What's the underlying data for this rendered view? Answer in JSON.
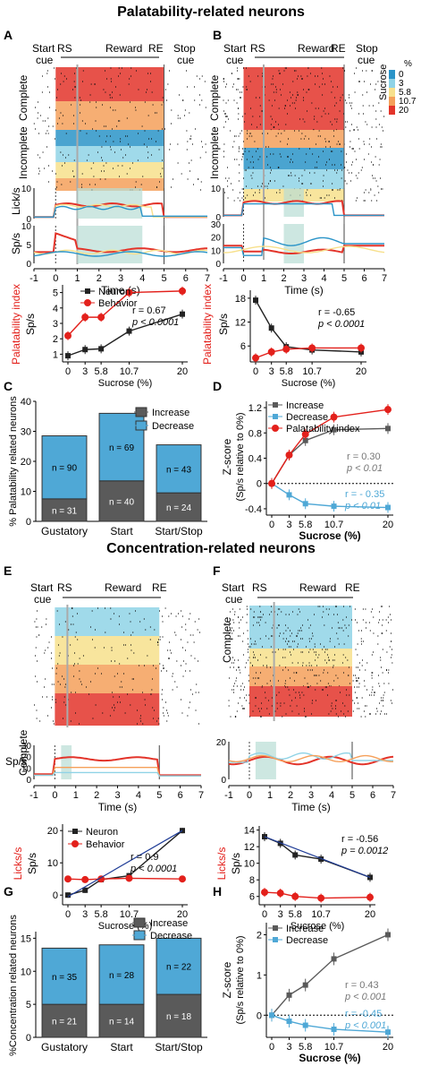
{
  "headings": {
    "top": "Palatability-related neurons",
    "middle": "Concentration-related neurons"
  },
  "panel_letters": [
    "A",
    "B",
    "C",
    "D",
    "E",
    "F",
    "G",
    "H"
  ],
  "labels": {
    "start_cue_1": "Start",
    "start_cue_2": "cue",
    "stop_cue_1": "Stop",
    "stop_cue_2": "cue",
    "rs": "RS",
    "re": "RE",
    "reward": "Reward",
    "complete": "Complete",
    "incomplete": "Incomplete",
    "licks": "Lick/s",
    "sps": "Sp/s",
    "time": "Time (s)",
    "sucrose_pct": "Sucrose (%)",
    "sucrose_legend": "Sucrose",
    "pct": "%",
    "pal_index": "Palatability index",
    "licks_s": "Licks/s",
    "neuron": "Neuron",
    "behavior": "Behavior",
    "increase": "Increase",
    "decrease": "Decrease",
    "c_ylabel": "% Palatability related neurons",
    "g_ylabel": "%Concentration related neurons",
    "d_ylabel_1": "Z-score",
    "d_ylabel_2": "(Sp/s relative to 0%)"
  },
  "time_ticks": [
    "-1",
    "0",
    "1",
    "2",
    "3",
    "4",
    "5",
    "6",
    "7"
  ],
  "sucrose_ticks": [
    "0",
    "3",
    "5.8",
    "10.7",
    "20"
  ],
  "sucrose_levels": [
    "0",
    "3",
    "5.8",
    "10.7",
    "20"
  ],
  "colors": {
    "s0": "#2a94c8",
    "s3": "#8fd3e6",
    "s5": "#f7e08c",
    "s10": "#f5a05a",
    "s20": "#e3342a",
    "neuron": "#222222",
    "behavior": "#e3201b",
    "increase": "#5a5a5a",
    "decrease": "#4fa8d6"
  },
  "stats": {
    "A": {
      "r": "r = 0.67",
      "p": "p < 0.0001"
    },
    "B": {
      "r": "r = -0.65",
      "p": "p < 0.0001"
    },
    "D_inc": {
      "r": "r = 0.30",
      "p": "p < 0.01"
    },
    "D_dec": {
      "r": "r = - 0.35",
      "p": "p < 0.01"
    },
    "E": {
      "r": "r = 0.9",
      "p": "p < 0.0001"
    },
    "F": {
      "r": "r = -0.56",
      "p": "p = 0.0012"
    },
    "H_inc": {
      "r": "r = 0.43",
      "p": "p < 0.001"
    },
    "H_dec": {
      "r": "r = -0.45",
      "p": "p < 0.001"
    }
  },
  "chart_data": [
    {
      "id": "A_index",
      "type": "line",
      "x": [
        0,
        3,
        5.8,
        10.7,
        20
      ],
      "series": [
        {
          "name": "Neuron",
          "values": [
            0.9,
            1.3,
            1.35,
            2.5,
            3.6
          ]
        },
        {
          "name": "Behavior",
          "values": [
            2.2,
            3.4,
            3.4,
            5.0,
            5.1
          ]
        }
      ],
      "yticks": [
        "1",
        "2",
        "3",
        "4",
        "5"
      ],
      "ylim": [
        0.5,
        5.5
      ]
    },
    {
      "id": "B_index",
      "type": "line",
      "x": [
        0,
        3,
        5.8,
        10.7,
        20
      ],
      "series": [
        {
          "name": "Neuron",
          "values": [
            17.5,
            10.5,
            5.8,
            5.0,
            4.5
          ]
        },
        {
          "name": "Behavior",
          "values": [
            3.0,
            4.5,
            5.2,
            5.5,
            5.5
          ]
        }
      ],
      "yticks": [
        "6",
        "12",
        "18"
      ],
      "ylim": [
        2,
        20
      ]
    },
    {
      "id": "C",
      "type": "bar",
      "categories": [
        "Gustatory",
        "Start",
        "Start/Stop"
      ],
      "series": [
        {
          "name": "Increase",
          "values": [
            7.5,
            13.5,
            9.5
          ],
          "labels": [
            "n = 31",
            "n = 40",
            "n = 24"
          ]
        },
        {
          "name": "Decrease",
          "values": [
            21,
            22.5,
            16
          ],
          "labels": [
            "n = 90",
            "n = 69",
            "n = 43"
          ]
        }
      ],
      "yticks": [
        "0",
        "10",
        "20",
        "30",
        "40"
      ],
      "ylim": [
        0,
        40
      ]
    },
    {
      "id": "D",
      "type": "line",
      "x": [
        0,
        3,
        5.8,
        10.7,
        20
      ],
      "series": [
        {
          "name": "Increase",
          "values": [
            0,
            0.45,
            0.68,
            0.85,
            0.87
          ]
        },
        {
          "name": "Decrease",
          "values": [
            0,
            -0.18,
            -0.32,
            -0.36,
            -0.38
          ]
        },
        {
          "name": "Palatability index",
          "values": [
            0,
            0.45,
            0.78,
            1.05,
            1.17
          ]
        }
      ],
      "yticks": [
        "-0.4",
        "0",
        "0.4",
        "0.8",
        "1.2"
      ],
      "ylim": [
        -0.5,
        1.3
      ]
    },
    {
      "id": "E_index",
      "type": "line",
      "x": [
        0,
        3,
        5.8,
        10.7,
        20
      ],
      "series": [
        {
          "name": "Neuron",
          "values": [
            0,
            1.5,
            4.8,
            6.0,
            20.0
          ]
        },
        {
          "name": "Behavior",
          "values": [
            5.0,
            4.8,
            5.0,
            5.2,
            5.0
          ]
        }
      ],
      "yticks": [
        "0",
        "10",
        "20"
      ],
      "ylim": [
        -3,
        22
      ]
    },
    {
      "id": "F_index",
      "type": "line",
      "x": [
        0,
        3,
        5.8,
        10.7,
        20
      ],
      "series": [
        {
          "name": "Neuron",
          "values": [
            13.2,
            12.4,
            11.0,
            10.5,
            8.3
          ]
        },
        {
          "name": "Behavior",
          "values": [
            6.5,
            6.4,
            6.0,
            5.8,
            5.9
          ]
        }
      ],
      "yticks": [
        "6",
        "8",
        "10",
        "12",
        "14"
      ],
      "ylim": [
        5,
        14.5
      ]
    },
    {
      "id": "G",
      "type": "bar",
      "categories": [
        "Gustatory",
        "Start",
        "Start/Stop"
      ],
      "series": [
        {
          "name": "Increase",
          "values": [
            5,
            5,
            6.5
          ],
          "labels": [
            "n = 21",
            "n = 14",
            "n = 18"
          ]
        },
        {
          "name": "Decrease",
          "values": [
            8.5,
            9,
            8.5
          ],
          "labels": [
            "n = 35",
            "n = 28",
            "n = 22"
          ]
        }
      ],
      "yticks": [
        "0",
        "5",
        "10",
        "15"
      ],
      "ylim": [
        0,
        16
      ]
    },
    {
      "id": "H",
      "type": "line",
      "x": [
        0,
        3,
        5.8,
        10.7,
        20
      ],
      "series": [
        {
          "name": "Increase",
          "values": [
            0,
            0.5,
            0.75,
            1.4,
            2.0
          ]
        },
        {
          "name": "Decrease",
          "values": [
            0,
            -0.15,
            -0.25,
            -0.35,
            -0.42
          ]
        }
      ],
      "yticks": [
        "0",
        "1",
        "2"
      ],
      "ylim": [
        -0.55,
        2.3
      ]
    }
  ]
}
